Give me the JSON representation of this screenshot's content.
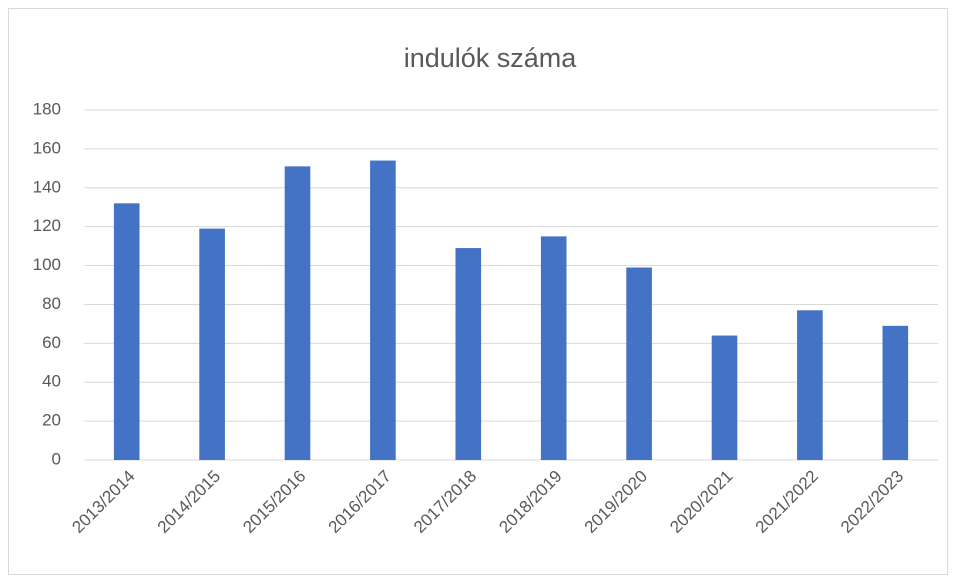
{
  "chart_data": {
    "type": "bar",
    "title": "indulók száma",
    "categories": [
      "2013/2014",
      "2014/2015",
      "2015/2016",
      "2016/2017",
      "2017/2018",
      "2018/2019",
      "2019/2020",
      "2020/2021",
      "2021/2022",
      "2022/2023"
    ],
    "values": [
      132,
      119,
      151,
      154,
      109,
      115,
      99,
      64,
      77,
      69
    ],
    "color": "#4472c4",
    "ylim": [
      0,
      180
    ],
    "yticks": [
      0,
      20,
      40,
      60,
      80,
      100,
      120,
      140,
      160,
      180
    ],
    "grid": true
  }
}
